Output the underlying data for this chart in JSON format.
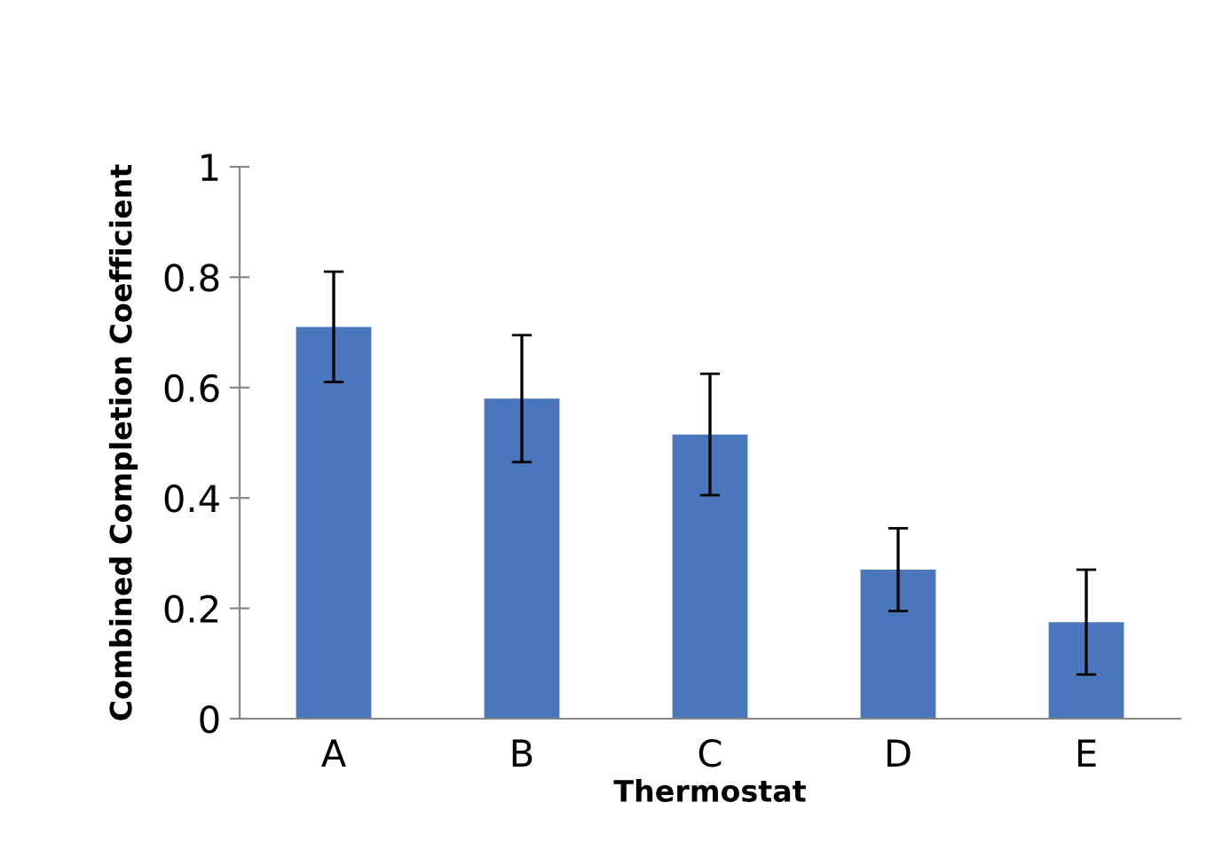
{
  "chart_data": {
    "type": "bar",
    "xlabel": "Thermostat",
    "ylabel": "Combined Completion Coefficient",
    "categories": [
      "A",
      "B",
      "C",
      "D",
      "E"
    ],
    "values": [
      0.71,
      0.58,
      0.515,
      0.27,
      0.175
    ],
    "errors": [
      0.1,
      0.115,
      0.11,
      0.075,
      0.095
    ],
    "color": "#4a76bd",
    "ylim": [
      0,
      1
    ],
    "yticks": [
      0,
      0.2,
      0.4,
      0.6,
      0.8,
      1
    ],
    "grid": false
  }
}
